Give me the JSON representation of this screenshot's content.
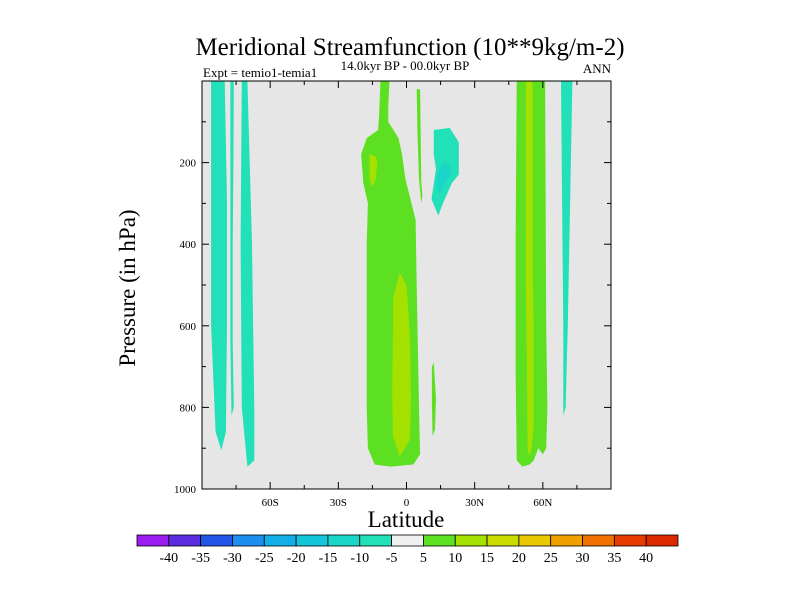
{
  "chart_data": {
    "type": "contour",
    "title": "Meridional Streamfunction (10**9kg/m-2)",
    "experiment_label": "Expt = temio1-temia1",
    "period_label": "14.0kyr BP - 00.0kyr BP",
    "season_label": "ANN",
    "xlabel": "Latitude",
    "ylabel": "Pressure (in hPa)",
    "xlim": [
      -90,
      90
    ],
    "ylim": [
      1000,
      0
    ],
    "x_ticks": [
      {
        "value": -60,
        "label": "60S"
      },
      {
        "value": -30,
        "label": "30S"
      },
      {
        "value": 0,
        "label": "0"
      },
      {
        "value": 30,
        "label": "30N"
      },
      {
        "value": 60,
        "label": "60N"
      }
    ],
    "y_ticks": [
      {
        "value": 200,
        "label": "200"
      },
      {
        "value": 400,
        "label": "400"
      },
      {
        "value": 600,
        "label": "600"
      },
      {
        "value": 800,
        "label": "800"
      },
      {
        "value": 1000,
        "label": "1000"
      }
    ],
    "background_color": "#e6e6e6",
    "colorbar": {
      "levels": [
        -40,
        -35,
        -30,
        -25,
        -20,
        -15,
        -10,
        -5,
        5,
        10,
        15,
        20,
        25,
        30,
        35,
        40
      ],
      "colors": [
        "#9a1cf0",
        "#5a2ee0",
        "#2255e8",
        "#1b8ef0",
        "#12aee8",
        "#14c4d8",
        "#1ad6c8",
        "#22e0b8",
        "#f0f0f0",
        "#5ee022",
        "#a4e000",
        "#c8dc00",
        "#e8c800",
        "#f0a000",
        "#f07000",
        "#e63c00",
        "#dc2a00"
      ]
    },
    "regions": [
      {
        "name": "neg-band-sh-outer",
        "color": "#22e0b8",
        "points": [
          [
            -86,
            0
          ],
          [
            -80,
            0
          ],
          [
            -79,
            300
          ],
          [
            -79,
            600
          ],
          [
            -79.5,
            860
          ],
          [
            -81.5,
            905
          ],
          [
            -84,
            860
          ],
          [
            -86,
            600
          ]
        ]
      },
      {
        "name": "neg-band-sh-thin",
        "color": "#22e0b8",
        "points": [
          [
            -77.5,
            0
          ],
          [
            -76,
            0
          ],
          [
            -76.2,
            200
          ],
          [
            -76.5,
            400
          ],
          [
            -76.5,
            640
          ],
          [
            -76,
            800
          ],
          [
            -77,
            820
          ],
          [
            -77.5,
            640
          ],
          [
            -77.5,
            400
          ]
        ]
      },
      {
        "name": "neg-band-sh-inner",
        "color": "#22e0b8",
        "points": [
          [
            -72.5,
            0
          ],
          [
            -70,
            0
          ],
          [
            -69,
            200
          ],
          [
            -68,
            400
          ],
          [
            -67.5,
            600
          ],
          [
            -67,
            800
          ],
          [
            -67,
            930
          ],
          [
            -70,
            945
          ],
          [
            -72.5,
            800
          ],
          [
            -73,
            400
          ]
        ]
      },
      {
        "name": "neg-band-nh",
        "color": "#22e0b8",
        "points": [
          [
            68,
            0
          ],
          [
            73,
            0
          ],
          [
            72,
            300
          ],
          [
            71,
            600
          ],
          [
            70,
            800
          ],
          [
            69,
            820
          ],
          [
            69,
            600
          ],
          [
            68.5,
            300
          ]
        ]
      },
      {
        "name": "neg-blob-upper",
        "color": "#22e0b8",
        "points": [
          [
            12,
            120
          ],
          [
            19,
            115
          ],
          [
            23,
            150
          ],
          [
            23,
            230
          ],
          [
            20,
            250
          ],
          [
            16,
            300
          ],
          [
            14,
            330
          ],
          [
            11,
            290
          ],
          [
            13,
            215
          ],
          [
            12,
            180
          ]
        ]
      },
      {
        "name": "neg-blob-core",
        "color": "#1ad6c8",
        "points": [
          [
            13.2,
            230
          ],
          [
            16,
            200
          ],
          [
            19,
            205
          ],
          [
            19.5,
            230
          ],
          [
            17,
            250
          ],
          [
            15,
            275
          ],
          [
            13.2,
            265
          ]
        ]
      },
      {
        "name": "pos-eq-cell",
        "color": "#5ee022",
        "points": [
          [
            -11.5,
            0
          ],
          [
            -7.5,
            0
          ],
          [
            -8,
            60
          ],
          [
            -8,
            100
          ],
          [
            -3.5,
            140
          ],
          [
            -2,
            180
          ],
          [
            -0.5,
            240
          ],
          [
            4,
            340
          ],
          [
            4.5,
            500
          ],
          [
            5.5,
            800
          ],
          [
            6,
            915
          ],
          [
            3,
            940
          ],
          [
            -7,
            945
          ],
          [
            -14,
            940
          ],
          [
            -17,
            900
          ],
          [
            -17.5,
            800
          ],
          [
            -17.5,
            600
          ],
          [
            -17.5,
            400
          ],
          [
            -17,
            300
          ],
          [
            -19,
            250
          ],
          [
            -20,
            180
          ],
          [
            -17.5,
            140
          ],
          [
            -12.5,
            120
          ],
          [
            -12,
            80
          ]
        ]
      },
      {
        "name": "pos-eq-upper-core",
        "color": "#a4e000",
        "points": [
          [
            -16.3,
            180
          ],
          [
            -13.5,
            185
          ],
          [
            -12.8,
            200
          ],
          [
            -13.5,
            240
          ],
          [
            -15,
            260
          ],
          [
            -16.3,
            240
          ]
        ]
      },
      {
        "name": "pos-eq-mid-core",
        "color": "#a4e000",
        "points": [
          [
            -5.8,
            530
          ],
          [
            -3,
            470
          ],
          [
            0,
            500
          ],
          [
            1.5,
            620
          ],
          [
            2,
            780
          ],
          [
            1.5,
            880
          ],
          [
            -3,
            920
          ],
          [
            -6,
            870
          ],
          [
            -6.3,
            760
          ],
          [
            -6,
            620
          ]
        ]
      },
      {
        "name": "pos-right-strip",
        "color": "#5ee022",
        "points": [
          [
            4.5,
            20
          ],
          [
            6,
            20
          ],
          [
            6.5,
            250
          ],
          [
            7,
            280
          ],
          [
            6.5,
            300
          ],
          [
            5.5,
            240
          ],
          [
            4.8,
            120
          ]
        ]
      },
      {
        "name": "pos-small-lower",
        "color": "#5ee022",
        "points": [
          [
            11.2,
            700
          ],
          [
            12,
            690
          ],
          [
            13,
            780
          ],
          [
            12.5,
            855
          ],
          [
            11.5,
            870
          ],
          [
            11.2,
            790
          ]
        ]
      },
      {
        "name": "pos-nh-band",
        "color": "#5ee022",
        "points": [
          [
            48.5,
            0
          ],
          [
            61,
            0
          ],
          [
            61.5,
            600
          ],
          [
            62,
            800
          ],
          [
            61.5,
            900
          ],
          [
            60,
            915
          ],
          [
            58,
            900
          ],
          [
            56,
            930
          ],
          [
            54.2,
            940
          ],
          [
            51,
            945
          ],
          [
            48.5,
            930
          ],
          [
            48,
            700
          ],
          [
            48,
            400
          ]
        ]
      },
      {
        "name": "pos-nh-core",
        "color": "#a4e000",
        "points": [
          [
            52.5,
            0
          ],
          [
            55.5,
            0
          ],
          [
            55.5,
            200
          ],
          [
            55.5,
            450
          ],
          [
            56,
            600
          ],
          [
            56,
            850
          ],
          [
            55,
            900
          ],
          [
            54,
            920
          ],
          [
            53.3,
            900
          ],
          [
            53,
            700
          ],
          [
            52.5,
            500
          ],
          [
            52.5,
            300
          ]
        ]
      }
    ]
  }
}
